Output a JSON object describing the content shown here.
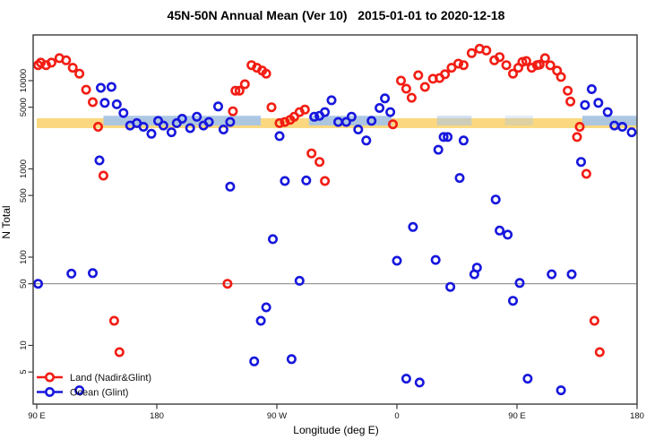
{
  "title": "45N-50N Annual Mean (Ver 10)   2015-01-01 to 2020-12-18",
  "legend": [
    {
      "label": "Land (Nadir&Glint)",
      "color": "#f21d14"
    },
    {
      "label": "Ocean (Glint)",
      "color": "#1717dd"
    }
  ],
  "chart_data": {
    "type": "scatter",
    "title": "45N-50N Annual Mean (Ver 10)   2015-01-01 to 2020-12-18",
    "xlabel": "Longitude (deg E)",
    "ylabel": "N Total",
    "legend_position": "bottom-left",
    "x_axis": {
      "note": "longitude axis runs 90E eastward around the globe to 180 (values 90..540 deg E)",
      "range": [
        90,
        540
      ],
      "tick_values": [
        90,
        180,
        270,
        360,
        450,
        540
      ],
      "tick_labels": [
        "90 E",
        "180",
        "90 W",
        "0",
        "90 E",
        "180"
      ]
    },
    "y_axis": {
      "scale": "log",
      "range": [
        2.2,
        33000
      ],
      "tick_values": [
        10000,
        5000,
        1000,
        500,
        100,
        50,
        10,
        5
      ],
      "tick_labels": [
        "10000",
        "5000",
        "1000",
        "500",
        "100",
        "50",
        "10",
        "5"
      ]
    },
    "reference_line": {
      "value": 50,
      "color": "#999999"
    },
    "bands": [
      {
        "name": "land-mean-band",
        "color": "#fbd87f",
        "opacity": 1,
        "lon": [
          90,
          540
        ],
        "v": [
          2900,
          3750
        ]
      },
      {
        "name": "ocean-band-segment-1",
        "color": "#a9c5e5",
        "opacity": 0.95,
        "lon": [
          140,
          258
        ],
        "v": [
          3100,
          4000
        ]
      },
      {
        "name": "ocean-band-segment-2",
        "color": "#a9c5e5",
        "opacity": 0.95,
        "lon": [
          294,
          356
        ],
        "v": [
          3100,
          4000
        ]
      },
      {
        "name": "ocean-band-segment-3",
        "color": "#a9c5e5",
        "opacity": 0.55,
        "lon": [
          390,
          416
        ],
        "v": [
          3100,
          4000
        ]
      },
      {
        "name": "ocean-band-segment-4",
        "color": "#a9c5e5",
        "opacity": 0.35,
        "lon": [
          441,
          462
        ],
        "v": [
          3100,
          4000
        ]
      },
      {
        "name": "ocean-band-segment-5",
        "color": "#a9c5e5",
        "opacity": 0.95,
        "lon": [
          499,
          540
        ],
        "v": [
          3100,
          4000
        ]
      }
    ],
    "series": [
      {
        "name": "Land (Nadir&Glint)",
        "color": "#f21d14",
        "points": [
          [
            91,
            15000
          ],
          [
            93,
            16000
          ],
          [
            97,
            15000
          ],
          [
            101,
            16000
          ],
          [
            107,
            18000
          ],
          [
            112,
            17000
          ],
          [
            117,
            14000
          ],
          [
            122,
            12000
          ],
          [
            127,
            7900
          ],
          [
            132,
            5700
          ],
          [
            136,
            3000
          ],
          [
            140,
            840
          ],
          [
            148,
            19
          ],
          [
            152,
            8.4
          ],
          [
            233,
            50
          ],
          [
            237,
            4500
          ],
          [
            239,
            7700
          ],
          [
            242,
            7700
          ],
          [
            246,
            9100
          ],
          [
            251,
            15000
          ],
          [
            255,
            14000
          ],
          [
            259,
            13000
          ],
          [
            262,
            12000
          ],
          [
            266,
            5000
          ],
          [
            272,
            3300
          ],
          [
            276,
            3400
          ],
          [
            280,
            3600
          ],
          [
            283,
            3900
          ],
          [
            287,
            4400
          ],
          [
            291,
            4700
          ],
          [
            296,
            1500
          ],
          [
            302,
            1200
          ],
          [
            306,
            730
          ],
          [
            357,
            3200
          ],
          [
            363,
            10000
          ],
          [
            367,
            8100
          ],
          [
            371,
            6400
          ],
          [
            376,
            11500
          ],
          [
            381,
            8500
          ],
          [
            387,
            10500
          ],
          [
            392,
            10700
          ],
          [
            396,
            11800
          ],
          [
            401,
            14000
          ],
          [
            406,
            15600
          ],
          [
            410,
            15000
          ],
          [
            416,
            20500
          ],
          [
            422,
            23000
          ],
          [
            427,
            22000
          ],
          [
            433,
            17000
          ],
          [
            437,
            18500
          ],
          [
            442,
            15000
          ],
          [
            447,
            12000
          ],
          [
            451,
            14000
          ],
          [
            454,
            16300
          ],
          [
            457,
            16700
          ],
          [
            461,
            14000
          ],
          [
            465,
            15000
          ],
          [
            467,
            15200
          ],
          [
            471,
            18000
          ],
          [
            475,
            14900
          ],
          [
            480,
            13000
          ],
          [
            483,
            11000
          ],
          [
            488,
            7700
          ],
          [
            490,
            5800
          ],
          [
            495,
            2300
          ],
          [
            497,
            3000
          ],
          [
            502,
            880
          ],
          [
            508,
            19
          ],
          [
            512,
            8.4
          ]
        ]
      },
      {
        "name": "Ocean (Glint)",
        "color": "#1717dd",
        "points": [
          [
            91,
            50
          ],
          [
            116,
            65
          ],
          [
            122,
            3.1
          ],
          [
            132,
            66
          ],
          [
            137,
            1250
          ],
          [
            138,
            8300
          ],
          [
            141,
            5600
          ],
          [
            146,
            8500
          ],
          [
            150,
            5400
          ],
          [
            155,
            4300
          ],
          [
            160,
            3100
          ],
          [
            165,
            3300
          ],
          [
            170,
            3000
          ],
          [
            176,
            2500
          ],
          [
            181,
            3500
          ],
          [
            185,
            3100
          ],
          [
            191,
            2600
          ],
          [
            195,
            3300
          ],
          [
            199,
            3700
          ],
          [
            205,
            2900
          ],
          [
            210,
            3900
          ],
          [
            215,
            3100
          ],
          [
            219,
            3400
          ],
          [
            226,
            5100
          ],
          [
            230,
            2800
          ],
          [
            235,
            3400
          ],
          [
            235,
            630
          ],
          [
            253,
            6.6
          ],
          [
            258,
            19
          ],
          [
            262,
            27
          ],
          [
            267,
            160
          ],
          [
            272,
            2350
          ],
          [
            276,
            730
          ],
          [
            281,
            7
          ],
          [
            287,
            54
          ],
          [
            292,
            740
          ],
          [
            298,
            3900
          ],
          [
            302,
            4000
          ],
          [
            306,
            4400
          ],
          [
            311,
            6000
          ],
          [
            316,
            3400
          ],
          [
            322,
            3400
          ],
          [
            326,
            3900
          ],
          [
            331,
            2800
          ],
          [
            337,
            2100
          ],
          [
            341,
            3500
          ],
          [
            347,
            4900
          ],
          [
            351,
            6300
          ],
          [
            355,
            4400
          ],
          [
            360,
            91
          ],
          [
            367,
            4.2
          ],
          [
            372,
            220
          ],
          [
            377,
            3.8
          ],
          [
            389,
            93
          ],
          [
            391,
            1650
          ],
          [
            395,
            2300
          ],
          [
            398,
            2300
          ],
          [
            400,
            46
          ],
          [
            407,
            790
          ],
          [
            410,
            2100
          ],
          [
            418,
            64
          ],
          [
            420,
            76
          ],
          [
            434,
            450
          ],
          [
            437,
            200
          ],
          [
            443,
            180
          ],
          [
            447,
            32
          ],
          [
            452,
            51
          ],
          [
            458,
            4.2
          ],
          [
            476,
            64
          ],
          [
            483,
            3.1
          ],
          [
            491,
            64
          ],
          [
            498,
            1200
          ],
          [
            501,
            5300
          ],
          [
            506,
            8000
          ],
          [
            511,
            5600
          ],
          [
            518,
            4400
          ],
          [
            523,
            3100
          ],
          [
            529,
            3000
          ],
          [
            536,
            2600
          ]
        ]
      }
    ]
  }
}
